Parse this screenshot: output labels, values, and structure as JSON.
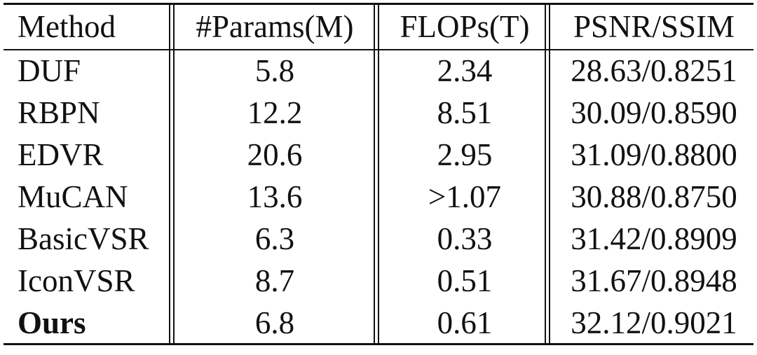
{
  "table": {
    "headers": [
      "Method",
      "#Params(M)",
      "FLOPs(T)",
      "PSNR/SSIM"
    ],
    "rows": [
      {
        "method": "DUF",
        "params": "5.8",
        "flops": "2.34",
        "psnr_ssim": "28.63/0.8251",
        "bold": false
      },
      {
        "method": "RBPN",
        "params": "12.2",
        "flops": "8.51",
        "psnr_ssim": "30.09/0.8590",
        "bold": false
      },
      {
        "method": "EDVR",
        "params": "20.6",
        "flops": "2.95",
        "psnr_ssim": "31.09/0.8800",
        "bold": false
      },
      {
        "method": "MuCAN",
        "params": "13.6",
        "flops": ">1.07",
        "psnr_ssim": "30.88/0.8750",
        "bold": false
      },
      {
        "method": "BasicVSR",
        "params": "6.3",
        "flops": "0.33",
        "psnr_ssim": "31.42/0.8909",
        "bold": false
      },
      {
        "method": "IconVSR",
        "params": "8.7",
        "flops": "0.51",
        "psnr_ssim": "31.67/0.8948",
        "bold": false
      },
      {
        "method": "Ours",
        "params": "6.8",
        "flops": "0.61",
        "psnr_ssim": "32.12/0.9021",
        "bold": true
      }
    ]
  }
}
